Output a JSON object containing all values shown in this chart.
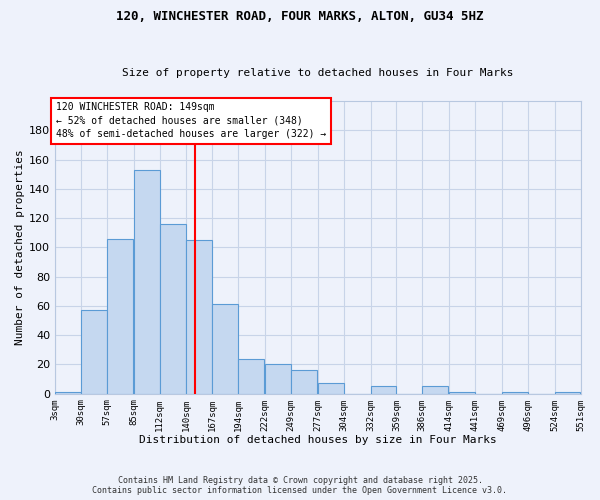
{
  "title1": "120, WINCHESTER ROAD, FOUR MARKS, ALTON, GU34 5HZ",
  "title2": "Size of property relative to detached houses in Four Marks",
  "xlabel": "Distribution of detached houses by size in Four Marks",
  "ylabel": "Number of detached properties",
  "bin_labels": [
    "3sqm",
    "30sqm",
    "57sqm",
    "85sqm",
    "112sqm",
    "140sqm",
    "167sqm",
    "194sqm",
    "222sqm",
    "249sqm",
    "277sqm",
    "304sqm",
    "332sqm",
    "359sqm",
    "386sqm",
    "414sqm",
    "441sqm",
    "469sqm",
    "496sqm",
    "524sqm",
    "551sqm"
  ],
  "bar_values": [
    1,
    57,
    106,
    153,
    116,
    105,
    61,
    24,
    20,
    16,
    7,
    0,
    5,
    0,
    5,
    1,
    0,
    1,
    0,
    1
  ],
  "bar_color": "#c5d8f0",
  "bar_edge_color": "#5b9bd5",
  "vline_x": 149,
  "ylim": [
    0,
    200
  ],
  "yticks": [
    0,
    20,
    40,
    60,
    80,
    100,
    120,
    140,
    160,
    180
  ],
  "annotation_title": "120 WINCHESTER ROAD: 149sqm",
  "annotation_line1": "← 52% of detached houses are smaller (348)",
  "annotation_line2": "48% of semi-detached houses are larger (322) →",
  "footer1": "Contains HM Land Registry data © Crown copyright and database right 2025.",
  "footer2": "Contains public sector information licensed under the Open Government Licence v3.0.",
  "bg_color": "#eef2fb",
  "grid_color": "#c8d4e8"
}
